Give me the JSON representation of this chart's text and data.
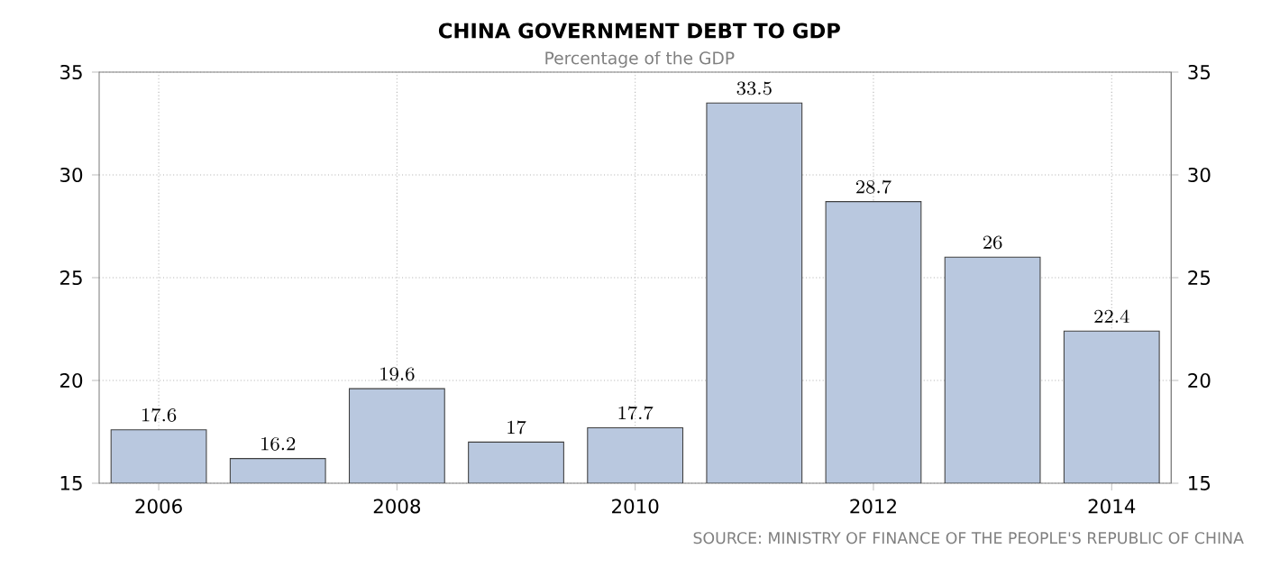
{
  "chart_data": {
    "type": "bar",
    "title": "CHINA GOVERNMENT DEBT TO GDP",
    "subtitle": "Percentage of the GDP",
    "categories": [
      "2006",
      null,
      "2008",
      null,
      "2010",
      null,
      "2012",
      null,
      "2014"
    ],
    "values": [
      17.6,
      16.2,
      19.6,
      17,
      17.7,
      33.5,
      28.7,
      26,
      22.4
    ],
    "color": "#b9c8df",
    "ylim": [
      15,
      35
    ],
    "yticks": [
      15,
      20,
      25,
      30,
      35
    ],
    "y2lim": [
      15,
      35
    ],
    "y2ticks": [
      15,
      20,
      25,
      30,
      35
    ],
    "grid": true,
    "data_labels": true,
    "annotations": [
      "SOURCE: MINISTRY OF FINANCE OF THE PEOPLE'S REPUBLIC OF CHINA"
    ]
  }
}
